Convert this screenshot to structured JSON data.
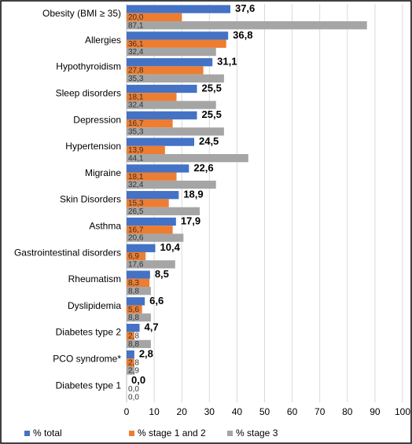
{
  "chart_data": {
    "type": "hbar",
    "categories": [
      "Obesity (BMI ≥ 35)",
      "Allergies",
      "Hypothyroidism",
      "Sleep disorders",
      "Depression",
      "Hypertension",
      "Migraine",
      "Skin Disorders",
      "Asthma",
      "Gastrointestinal disorders",
      "Rheumatism",
      "Dyslipidemia",
      "Diabetes type 2",
      "PCO syndrome*",
      "Diabetes type 1"
    ],
    "series": [
      {
        "name": "% total",
        "color": "#4472c4",
        "values": [
          37.6,
          36.8,
          31.1,
          25.5,
          25.5,
          24.5,
          22.6,
          18.9,
          17.9,
          10.4,
          8.5,
          6.6,
          4.7,
          2.8,
          0.0
        ],
        "value_labels": [
          "37,6",
          "36,8",
          "31,1",
          "25,5",
          "25,5",
          "24,5",
          "22,6",
          "18,9",
          "17,9",
          "10,4",
          "8,5",
          "6,6",
          "4,7",
          "2,8",
          "0,0"
        ]
      },
      {
        "name": "% stage 1 and 2",
        "color": "#ed7d31",
        "values": [
          20.0,
          36.1,
          27.8,
          18.1,
          16.7,
          13.9,
          18.1,
          15.3,
          16.7,
          6.9,
          8.3,
          5.6,
          2.8,
          2.8,
          0.0
        ],
        "value_labels": [
          "20,0",
          "36,1",
          "27,8",
          "18,1",
          "16,7",
          "13,9",
          "18,1",
          "15,3",
          "16,7",
          "6,9",
          "8,3",
          "5,6",
          "2,8",
          "2,8",
          "0,0"
        ]
      },
      {
        "name": "% stage 3",
        "color": "#a5a5a5",
        "values": [
          87.1,
          32.4,
          35.3,
          32.4,
          35.3,
          44.1,
          32.4,
          26.5,
          20.6,
          17.6,
          8.8,
          8.8,
          8.8,
          2.9,
          0.0
        ],
        "value_labels": [
          "87,1",
          "32,4",
          "35,3",
          "32,4",
          "35,3",
          "44,1",
          "32,4",
          "26,5",
          "20,6",
          "17,6",
          "8,8",
          "8,8",
          "8,8",
          "2,9",
          "0,0"
        ]
      }
    ],
    "xlim": [
      0,
      100
    ],
    "xticks": [
      0,
      10,
      20,
      30,
      40,
      50,
      60,
      70,
      80,
      90,
      100
    ],
    "grid": true,
    "legend": "bottom"
  }
}
